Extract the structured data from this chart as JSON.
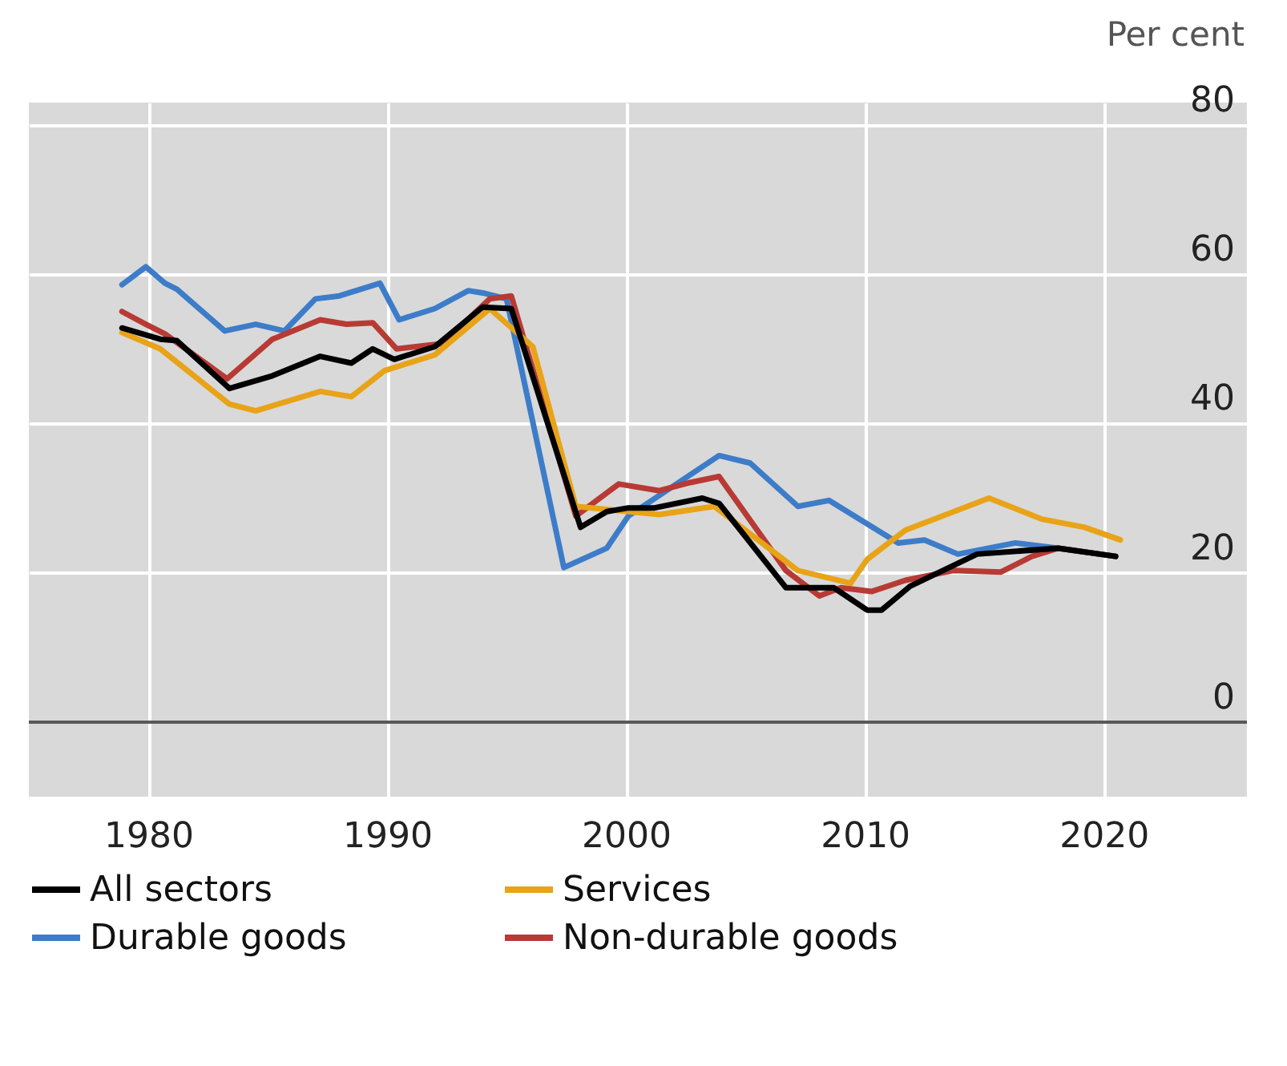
{
  "chart_data": {
    "type": "line",
    "ylabel": "Per cent",
    "xlim": [
      1975,
      2026
    ],
    "xticks": [
      1980,
      1990,
      2000,
      2010,
      2020
    ],
    "ylim": [
      -10,
      83
    ],
    "yticks": [
      0,
      20,
      40,
      60,
      80
    ],
    "grid": true,
    "legend": "bottom",
    "line_style": "solid",
    "ref_lines": [
      {
        "axis": "y",
        "value": 0,
        "color": "#595959"
      }
    ],
    "series": [
      {
        "name": "Durable goods",
        "color": "#3d7cc9",
        "x": [
          1978.9,
          1979.9,
          1980.7,
          1981.2,
          1983.2,
          1984.5,
          1985.7,
          1987,
          1988,
          1989.7,
          1990.5,
          1992,
          1993.4,
          1994,
          1995,
          1997.4,
          1999.2,
          2000.1,
          2003.9,
          2005.2,
          2007.2,
          2008.5,
          2011.4,
          2012.5,
          2013.9,
          2016.3,
          2018.1,
          2020.5
        ],
        "values": [
          58.6,
          61,
          58.8,
          58,
          52.4,
          53.3,
          52.4,
          56.7,
          57.1,
          58.8,
          53.9,
          55.4,
          57.8,
          57.5,
          56.7,
          20.7,
          23.3,
          27.6,
          35.7,
          34.7,
          28.9,
          29.7,
          24,
          24.4,
          22.5,
          24,
          23.3,
          22.2
        ]
      },
      {
        "name": "Non-durable goods",
        "color": "#b83a34",
        "x": [
          1978.9,
          1979.9,
          1980.7,
          1983.3,
          1985.2,
          1987.2,
          1988.3,
          1989.4,
          1990.4,
          1991.2,
          1992.3,
          1994.3,
          1995.2,
          1997.9,
          1999.7,
          2001.4,
          2002.7,
          2003.9,
          2006.7,
          2008.1,
          2009,
          2010.3,
          2011.7,
          2013.7,
          2015.7,
          2017,
          2018.1,
          2020.5
        ],
        "values": [
          55,
          53.3,
          52,
          46,
          51.3,
          53.9,
          53.3,
          53.5,
          50,
          50.3,
          50.7,
          56.7,
          57.1,
          27.6,
          31.9,
          31,
          32.1,
          32.9,
          20.3,
          16.9,
          18,
          17.5,
          19,
          20.3,
          20.1,
          22.2,
          23.3,
          22.2
        ]
      },
      {
        "name": "Services",
        "color": "#e8a317",
        "x": [
          1978.9,
          1980.5,
          1983.4,
          1984.5,
          1987.2,
          1988.5,
          1989.9,
          1992,
          1994.3,
          1996.1,
          1997.9,
          2000.1,
          2001.4,
          2003.7,
          2007.2,
          2009.4,
          2010.1,
          2011.7,
          2015.2,
          2017.4,
          2019.2,
          2020.7
        ],
        "values": [
          52.2,
          50,
          42.6,
          41.7,
          44.3,
          43.6,
          47.1,
          49.2,
          55.4,
          50.3,
          28.9,
          28.2,
          27.8,
          28.9,
          20.3,
          18.6,
          21.8,
          25.7,
          30,
          27.2,
          26.1,
          24.4
        ]
      },
      {
        "name": "All sectors",
        "color": "#000000",
        "x": [
          1978.9,
          1980.5,
          1981.2,
          1983.4,
          1985.2,
          1987.2,
          1988.5,
          1989.4,
          1990.3,
          1992,
          1994,
          1995.2,
          1998.1,
          1999.2,
          2000.1,
          2001.2,
          2003.2,
          2003.9,
          2006.7,
          2008.7,
          2010.1,
          2010.7,
          2011.9,
          2014.7,
          2018.1,
          2020.5
        ],
        "values": [
          52.8,
          51.3,
          51.1,
          44.7,
          46.4,
          49,
          48.1,
          50,
          48.6,
          50.3,
          55.6,
          55.4,
          26.1,
          28.2,
          28.7,
          28.7,
          30,
          29.3,
          18,
          18,
          15,
          15,
          18.2,
          22.5,
          23.3,
          22.2
        ]
      }
    ]
  }
}
